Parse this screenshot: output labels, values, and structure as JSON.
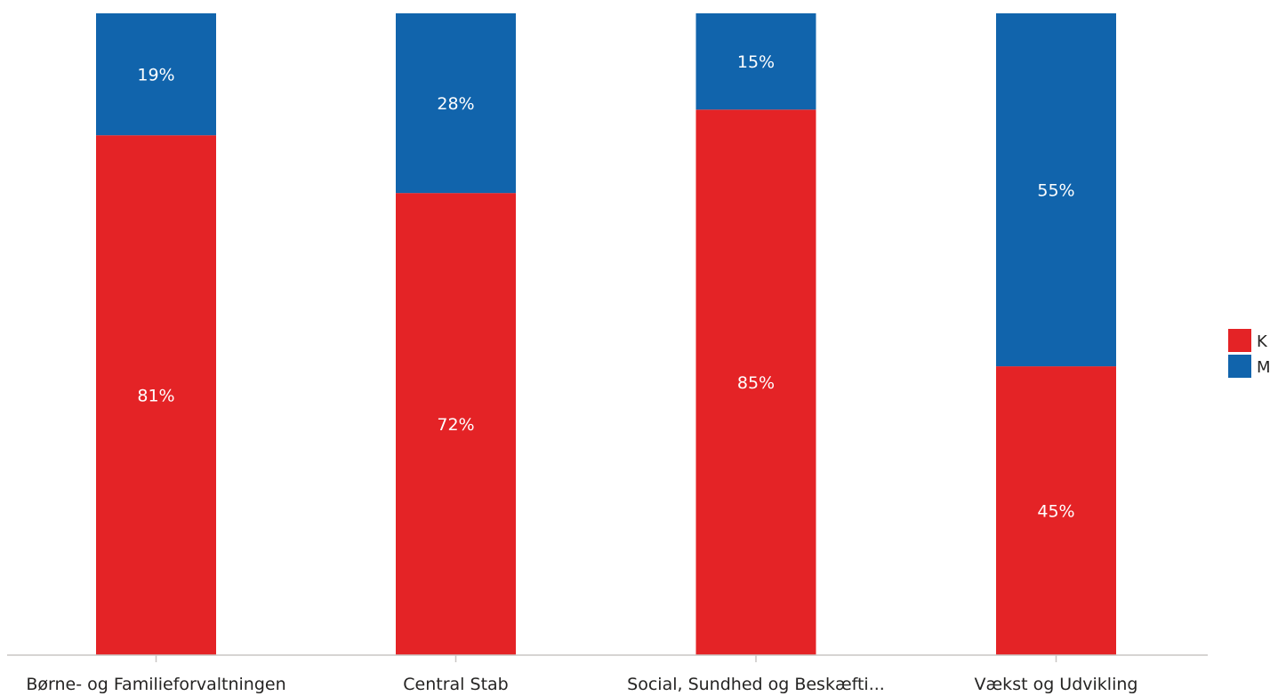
{
  "chart_data": {
    "type": "bar",
    "stacked": true,
    "normalized": true,
    "categories": [
      "Børne- og Familieforvaltningen",
      "Central Stab",
      "Social, Sundhed og Beskæfti...",
      "Vækst og Udvikling"
    ],
    "series": [
      {
        "name": "K",
        "color": "#e42326",
        "values": [
          81,
          72,
          85,
          45
        ]
      },
      {
        "name": "M",
        "color": "#1164ac",
        "values": [
          19,
          28,
          15,
          55
        ]
      }
    ],
    "ylim": [
      0,
      100
    ],
    "value_suffix": "%",
    "data_labels": true,
    "grid": false,
    "legend_position": "right"
  }
}
